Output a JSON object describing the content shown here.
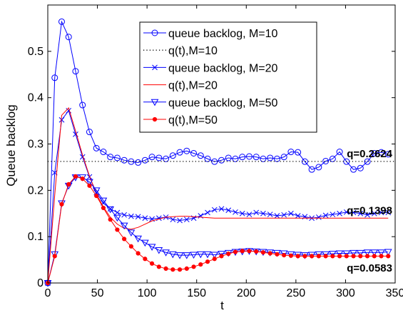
{
  "chart_data": {
    "type": "line",
    "title": "",
    "xlabel": "t",
    "ylabel": "Queue backlog",
    "xlim": [
      0,
      350
    ],
    "ylim": [
      0,
      0.6
    ],
    "xticks": [
      0,
      50,
      100,
      150,
      200,
      250,
      300,
      350
    ],
    "yticks": [
      0,
      0.1,
      0.2,
      0.3,
      0.4,
      0.5
    ],
    "grid": false,
    "legend_position": "top-center",
    "series": [
      {
        "name": "queue backlog, M=10",
        "color": "#0000ff",
        "line": "solid",
        "marker": "circle",
        "x": [
          0,
          7,
          14,
          21,
          28,
          35,
          42,
          49,
          56,
          63,
          70,
          77,
          84,
          91,
          98,
          105,
          112,
          119,
          126,
          133,
          140,
          147,
          154,
          161,
          168,
          175,
          182,
          189,
          196,
          203,
          210,
          217,
          224,
          231,
          238,
          245,
          252,
          259,
          266,
          273,
          280,
          287,
          294,
          301,
          308,
          315,
          322,
          329,
          336,
          343
        ],
        "y": [
          0,
          0.443,
          0.564,
          0.531,
          0.457,
          0.384,
          0.326,
          0.291,
          0.283,
          0.272,
          0.27,
          0.265,
          0.262,
          0.26,
          0.265,
          0.272,
          0.27,
          0.268,
          0.275,
          0.282,
          0.285,
          0.28,
          0.275,
          0.268,
          0.262,
          0.265,
          0.27,
          0.268,
          0.272,
          0.273,
          0.272,
          0.268,
          0.27,
          0.268,
          0.272,
          0.283,
          0.282,
          0.262,
          0.245,
          0.25,
          0.263,
          0.268,
          0.283,
          0.262,
          0.245,
          0.248,
          0.262,
          0.28,
          0.282,
          0.278
        ]
      },
      {
        "name": "q(t),M=10",
        "color": "#000000",
        "line": "dotted",
        "marker": "none",
        "x": [
          0,
          350
        ],
        "y": [
          0.2624,
          0.2624
        ]
      },
      {
        "name": "queue backlog, M=20",
        "color": "#0000ff",
        "line": "solid",
        "marker": "x",
        "x": [
          0,
          7,
          14,
          21,
          28,
          35,
          42,
          49,
          56,
          63,
          70,
          77,
          84,
          91,
          98,
          105,
          112,
          119,
          126,
          133,
          140,
          147,
          154,
          161,
          168,
          175,
          182,
          189,
          196,
          203,
          210,
          217,
          224,
          231,
          238,
          245,
          252,
          259,
          266,
          273,
          280,
          287,
          294,
          301,
          308,
          315,
          322,
          329,
          336,
          343
        ],
        "y": [
          0,
          0.238,
          0.352,
          0.372,
          0.321,
          0.272,
          0.229,
          0.195,
          0.173,
          0.16,
          0.152,
          0.147,
          0.144,
          0.143,
          0.14,
          0.138,
          0.14,
          0.142,
          0.137,
          0.135,
          0.137,
          0.14,
          0.145,
          0.152,
          0.158,
          0.16,
          0.157,
          0.153,
          0.15,
          0.148,
          0.152,
          0.15,
          0.148,
          0.145,
          0.147,
          0.15,
          0.145,
          0.143,
          0.14,
          0.142,
          0.146,
          0.148,
          0.15,
          0.153,
          0.152,
          0.15,
          0.147,
          0.15,
          0.152,
          0.152
        ]
      },
      {
        "name": "q(t),M=20",
        "color": "#ff0000",
        "line": "solid",
        "marker": "none",
        "x": [
          0,
          7,
          14,
          21,
          28,
          35,
          42,
          49,
          56,
          63,
          70,
          77,
          84,
          91,
          98,
          105,
          112,
          119,
          126,
          133,
          140,
          147,
          154,
          161,
          168,
          175,
          182,
          189,
          196,
          203,
          210,
          217,
          224,
          231,
          238,
          245,
          252,
          259,
          266,
          273,
          280,
          287,
          294,
          301,
          308,
          315,
          322,
          329,
          336,
          343
        ],
        "y": [
          0,
          0.19,
          0.362,
          0.378,
          0.328,
          0.276,
          0.231,
          0.192,
          0.164,
          0.142,
          0.127,
          0.118,
          0.116,
          0.12,
          0.127,
          0.134,
          0.138,
          0.142,
          0.143,
          0.144,
          0.144,
          0.143,
          0.142,
          0.141,
          0.14,
          0.14,
          0.14,
          0.14,
          0.14,
          0.14,
          0.14,
          0.14,
          0.14,
          0.14,
          0.14,
          0.14,
          0.14,
          0.14,
          0.14,
          0.14,
          0.14,
          0.14,
          0.14,
          0.14,
          0.14,
          0.14,
          0.14,
          0.14,
          0.14,
          0.14
        ]
      },
      {
        "name": "queue backlog, M=50",
        "color": "#0000ff",
        "line": "solid",
        "marker": "triangle-down",
        "x": [
          0,
          7,
          14,
          21,
          28,
          35,
          42,
          49,
          56,
          63,
          70,
          77,
          84,
          91,
          98,
          105,
          112,
          119,
          126,
          133,
          140,
          147,
          154,
          161,
          168,
          175,
          182,
          189,
          196,
          203,
          210,
          217,
          224,
          231,
          238,
          245,
          252,
          259,
          266,
          273,
          280,
          287,
          294,
          301,
          308,
          315,
          322,
          329,
          336,
          343
        ],
        "y": [
          0,
          0.062,
          0.172,
          0.21,
          0.228,
          0.228,
          0.218,
          0.2,
          0.178,
          0.159,
          0.141,
          0.124,
          0.109,
          0.096,
          0.087,
          0.078,
          0.071,
          0.066,
          0.062,
          0.06,
          0.06,
          0.061,
          0.062,
          0.062,
          0.061,
          0.063,
          0.065,
          0.067,
          0.068,
          0.069,
          0.068,
          0.067,
          0.066,
          0.065,
          0.064,
          0.062,
          0.061,
          0.06,
          0.061,
          0.062,
          0.062,
          0.063,
          0.064,
          0.064,
          0.065,
          0.065,
          0.066,
          0.066,
          0.066,
          0.067
        ]
      },
      {
        "name": "q(t),M=50",
        "color": "#ff0000",
        "line": "solid",
        "marker": "dot",
        "x": [
          0,
          7,
          14,
          21,
          28,
          35,
          42,
          49,
          56,
          63,
          70,
          77,
          84,
          91,
          98,
          105,
          112,
          119,
          126,
          133,
          140,
          147,
          154,
          161,
          168,
          175,
          182,
          189,
          196,
          203,
          210,
          217,
          224,
          231,
          238,
          245,
          252,
          259,
          266,
          273,
          280,
          287,
          294,
          301,
          308,
          315,
          322,
          329,
          336,
          343
        ],
        "y": [
          0,
          0.058,
          0.17,
          0.213,
          0.23,
          0.225,
          0.21,
          0.188,
          0.162,
          0.137,
          0.115,
          0.095,
          0.079,
          0.064,
          0.052,
          0.042,
          0.035,
          0.031,
          0.029,
          0.029,
          0.031,
          0.035,
          0.04,
          0.046,
          0.052,
          0.058,
          0.063,
          0.067,
          0.069,
          0.069,
          0.068,
          0.066,
          0.064,
          0.062,
          0.06,
          0.059,
          0.058,
          0.058,
          0.058,
          0.058,
          0.058,
          0.058,
          0.058,
          0.058,
          0.058,
          0.058,
          0.058,
          0.058,
          0.058,
          0.058
        ]
      }
    ],
    "annotations": [
      {
        "text": "q=0.2624",
        "x": 343,
        "y": 0.2624
      },
      {
        "text": "q=0.1398",
        "x": 343,
        "y": 0.1398
      },
      {
        "text": "q=0.0583",
        "x": 343,
        "y": 0.0583
      }
    ]
  }
}
